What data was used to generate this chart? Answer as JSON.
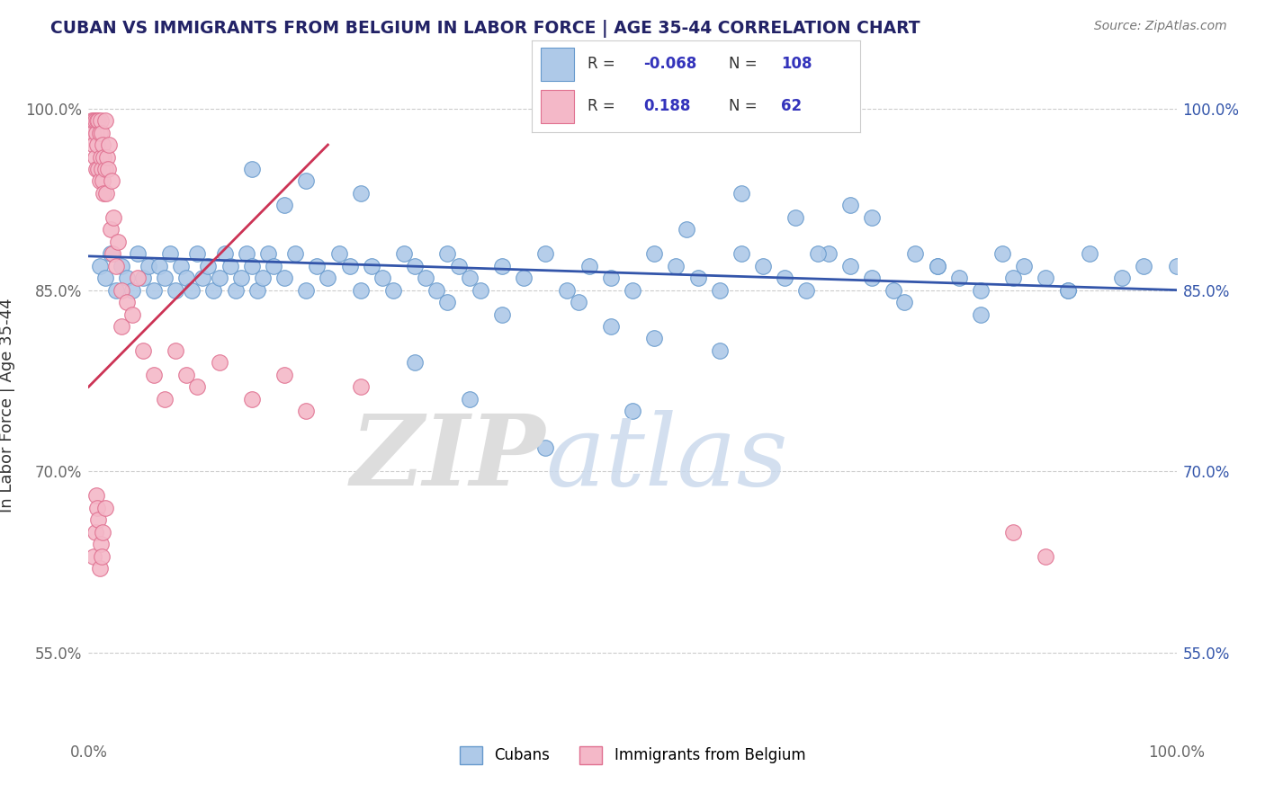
{
  "title": "CUBAN VS IMMIGRANTS FROM BELGIUM IN LABOR FORCE | AGE 35-44 CORRELATION CHART",
  "source": "Source: ZipAtlas.com",
  "ylabel": "In Labor Force | Age 35-44",
  "xlim": [
    0.0,
    1.0
  ],
  "ylim": [
    0.48,
    1.03
  ],
  "yticks": [
    0.55,
    0.7,
    0.85,
    1.0
  ],
  "ytick_labels": [
    "55.0%",
    "70.0%",
    "85.0%",
    "100.0%"
  ],
  "xticks": [
    0.0,
    0.25,
    0.5,
    0.75,
    1.0
  ],
  "xtick_labels": [
    "0.0%",
    "",
    "",
    "",
    "100.0%"
  ],
  "blue_color": "#aec9e8",
  "blue_edge_color": "#6699cc",
  "pink_color": "#f4b8c8",
  "pink_edge_color": "#e07090",
  "blue_R": -0.068,
  "blue_N": 108,
  "pink_R": 0.188,
  "pink_N": 62,
  "legend_label_blue": "Cubans",
  "legend_label_pink": "Immigrants from Belgium",
  "blue_line_color": "#3355aa",
  "pink_line_color": "#cc3355",
  "blue_scatter_x": [
    0.01,
    0.015,
    0.02,
    0.025,
    0.03,
    0.035,
    0.04,
    0.045,
    0.05,
    0.055,
    0.06,
    0.065,
    0.07,
    0.075,
    0.08,
    0.085,
    0.09,
    0.095,
    0.1,
    0.105,
    0.11,
    0.115,
    0.12,
    0.125,
    0.13,
    0.135,
    0.14,
    0.145,
    0.15,
    0.155,
    0.16,
    0.165,
    0.17,
    0.18,
    0.19,
    0.2,
    0.21,
    0.22,
    0.23,
    0.24,
    0.25,
    0.26,
    0.27,
    0.28,
    0.29,
    0.3,
    0.31,
    0.32,
    0.33,
    0.34,
    0.35,
    0.36,
    0.38,
    0.4,
    0.42,
    0.44,
    0.46,
    0.48,
    0.5,
    0.52,
    0.54,
    0.56,
    0.58,
    0.6,
    0.62,
    0.64,
    0.66,
    0.68,
    0.7,
    0.72,
    0.74,
    0.76,
    0.78,
    0.8,
    0.82,
    0.84,
    0.86,
    0.88,
    0.9,
    0.92,
    0.3,
    0.35,
    0.42,
    0.5,
    0.18,
    0.25,
    0.6,
    0.7,
    0.55,
    0.65,
    0.15,
    0.2,
    0.45,
    0.75,
    0.38,
    0.33,
    0.48,
    0.82,
    0.52,
    0.58,
    0.67,
    0.72,
    0.78,
    0.85,
    0.9,
    0.95,
    0.97,
    1.0
  ],
  "blue_scatter_y": [
    0.87,
    0.86,
    0.88,
    0.85,
    0.87,
    0.86,
    0.85,
    0.88,
    0.86,
    0.87,
    0.85,
    0.87,
    0.86,
    0.88,
    0.85,
    0.87,
    0.86,
    0.85,
    0.88,
    0.86,
    0.87,
    0.85,
    0.86,
    0.88,
    0.87,
    0.85,
    0.86,
    0.88,
    0.87,
    0.85,
    0.86,
    0.88,
    0.87,
    0.86,
    0.88,
    0.85,
    0.87,
    0.86,
    0.88,
    0.87,
    0.85,
    0.87,
    0.86,
    0.85,
    0.88,
    0.87,
    0.86,
    0.85,
    0.88,
    0.87,
    0.86,
    0.85,
    0.87,
    0.86,
    0.88,
    0.85,
    0.87,
    0.86,
    0.85,
    0.88,
    0.87,
    0.86,
    0.85,
    0.88,
    0.87,
    0.86,
    0.85,
    0.88,
    0.87,
    0.86,
    0.85,
    0.88,
    0.87,
    0.86,
    0.85,
    0.88,
    0.87,
    0.86,
    0.85,
    0.88,
    0.79,
    0.76,
    0.72,
    0.75,
    0.92,
    0.93,
    0.93,
    0.92,
    0.9,
    0.91,
    0.95,
    0.94,
    0.84,
    0.84,
    0.83,
    0.84,
    0.82,
    0.83,
    0.81,
    0.8,
    0.88,
    0.91,
    0.87,
    0.86,
    0.85,
    0.86,
    0.87,
    0.87
  ],
  "pink_scatter_x": [
    0.003,
    0.004,
    0.005,
    0.005,
    0.006,
    0.006,
    0.007,
    0.007,
    0.008,
    0.008,
    0.009,
    0.009,
    0.01,
    0.01,
    0.011,
    0.011,
    0.012,
    0.012,
    0.013,
    0.013,
    0.014,
    0.014,
    0.015,
    0.015,
    0.016,
    0.017,
    0.018,
    0.019,
    0.02,
    0.021,
    0.022,
    0.023,
    0.025,
    0.027,
    0.03,
    0.03,
    0.035,
    0.04,
    0.045,
    0.05,
    0.06,
    0.07,
    0.08,
    0.09,
    0.1,
    0.12,
    0.15,
    0.18,
    0.2,
    0.25,
    0.005,
    0.006,
    0.007,
    0.008,
    0.009,
    0.01,
    0.011,
    0.012,
    0.013,
    0.015,
    0.85,
    0.88
  ],
  "pink_scatter_y": [
    0.99,
    0.98,
    0.99,
    0.97,
    0.99,
    0.96,
    0.98,
    0.95,
    0.99,
    0.97,
    0.95,
    0.99,
    0.94,
    0.98,
    0.96,
    0.99,
    0.95,
    0.98,
    0.94,
    0.97,
    0.93,
    0.96,
    0.95,
    0.99,
    0.93,
    0.96,
    0.95,
    0.97,
    0.9,
    0.94,
    0.88,
    0.91,
    0.87,
    0.89,
    0.85,
    0.82,
    0.84,
    0.83,
    0.86,
    0.8,
    0.78,
    0.76,
    0.8,
    0.78,
    0.77,
    0.79,
    0.76,
    0.78,
    0.75,
    0.77,
    0.63,
    0.65,
    0.68,
    0.67,
    0.66,
    0.62,
    0.64,
    0.63,
    0.65,
    0.67,
    0.65,
    0.63
  ],
  "pink_trendline_x": [
    0.0,
    0.22
  ],
  "pink_trendline_start_y": 0.77,
  "pink_trendline_end_y": 0.97,
  "blue_trendline_start_y": 0.878,
  "blue_trendline_end_y": 0.85
}
